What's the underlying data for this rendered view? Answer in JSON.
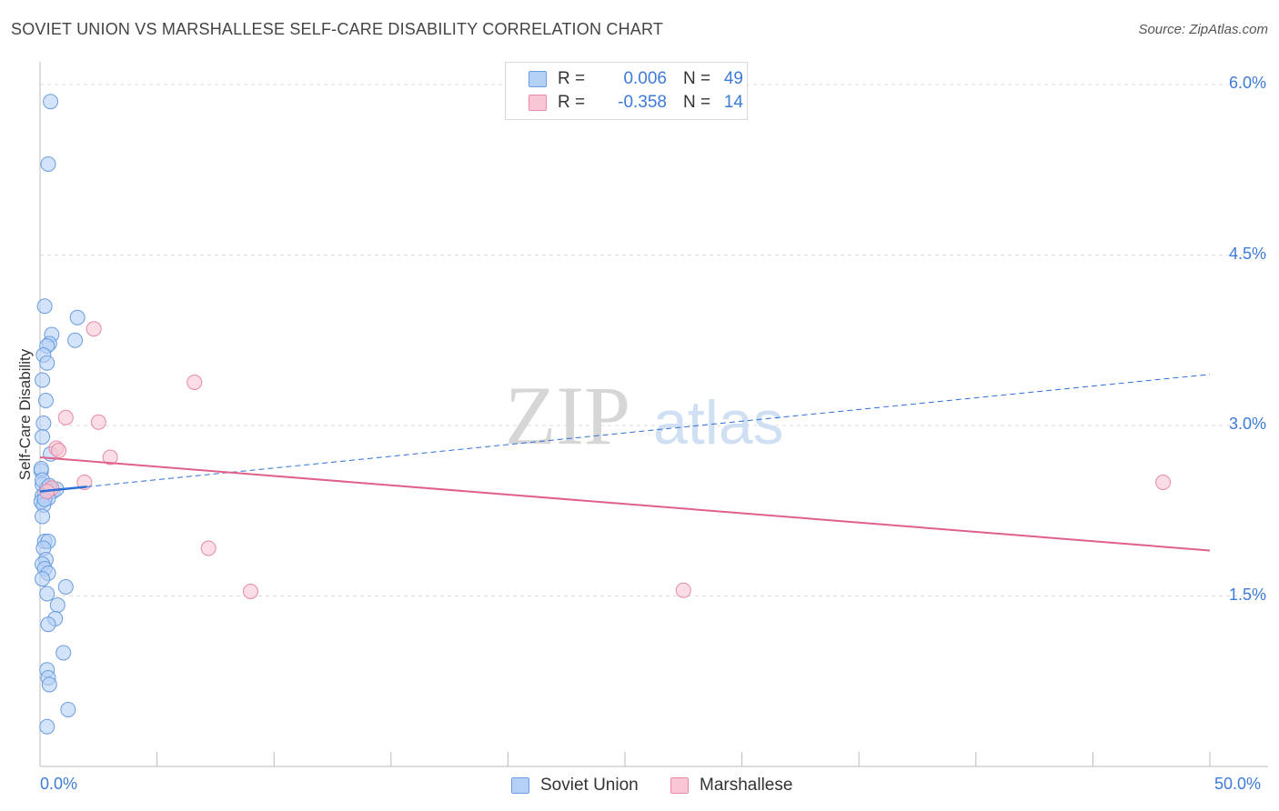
{
  "title": "SOVIET UNION VS MARSHALLESE SELF-CARE DISABILITY CORRELATION CHART",
  "source": "Source: ZipAtlas.com",
  "watermark": {
    "zip": "ZIP",
    "atlas": "atlas"
  },
  "colors": {
    "soviet_fill": "#b5d0f5",
    "soviet_stroke": "#6b9de0",
    "soviet_line": "#2e6fd6",
    "marsh_fill": "#f8c6d4",
    "marsh_stroke": "#e88aa7",
    "marsh_line": "#e0608c",
    "accent_text": "#3d7bd9",
    "grid": "#dcdcdc"
  },
  "legend": {
    "rows": [
      {
        "r_label": "R =",
        "r_value": "0.006",
        "n_label": "N =",
        "n_value": "49"
      },
      {
        "r_label": "R =",
        "r_value": "-0.358",
        "n_label": "N =",
        "n_value": "14"
      }
    ]
  },
  "chart_data": {
    "type": "scatter",
    "title": "SOVIET UNION VS MARSHALLESE SELF-CARE DISABILITY CORRELATION CHART",
    "xlabel": "",
    "ylabel": "Self-Care Disability",
    "xlim": [
      0,
      50
    ],
    "ylim": [
      0,
      6.2
    ],
    "x_tick_labels": [
      "0.0%",
      "50.0%"
    ],
    "y_ticks": [
      1.5,
      3.0,
      4.5,
      6.0
    ],
    "y_tick_labels": [
      "1.5%",
      "3.0%",
      "4.5%",
      "6.0%"
    ],
    "grid": "horizontal dashed",
    "legend_position": "top-center and bottom",
    "series": [
      {
        "name": "Soviet Union",
        "r": 0.006,
        "n": 49,
        "points": [
          [
            0.45,
            5.85
          ],
          [
            0.35,
            5.3
          ],
          [
            0.2,
            4.05
          ],
          [
            1.6,
            3.95
          ],
          [
            0.5,
            3.8
          ],
          [
            1.5,
            3.75
          ],
          [
            0.4,
            3.72
          ],
          [
            0.3,
            3.7
          ],
          [
            0.15,
            3.62
          ],
          [
            0.3,
            3.55
          ],
          [
            0.1,
            3.4
          ],
          [
            0.25,
            3.22
          ],
          [
            0.15,
            3.02
          ],
          [
            0.1,
            2.9
          ],
          [
            0.45,
            2.75
          ],
          [
            0.05,
            2.6
          ],
          [
            0.1,
            2.48
          ],
          [
            0.3,
            2.45
          ],
          [
            0.55,
            2.42
          ],
          [
            0.7,
            2.44
          ],
          [
            0.2,
            2.4
          ],
          [
            0.1,
            2.38
          ],
          [
            0.35,
            2.36
          ],
          [
            0.05,
            2.33
          ],
          [
            0.15,
            2.3
          ],
          [
            0.1,
            2.2
          ],
          [
            0.2,
            1.98
          ],
          [
            0.35,
            1.98
          ],
          [
            0.15,
            1.92
          ],
          [
            0.25,
            1.82
          ],
          [
            0.1,
            1.78
          ],
          [
            0.2,
            1.74
          ],
          [
            0.35,
            1.7
          ],
          [
            0.1,
            1.65
          ],
          [
            1.1,
            1.58
          ],
          [
            0.3,
            1.52
          ],
          [
            0.75,
            1.42
          ],
          [
            0.65,
            1.3
          ],
          [
            0.35,
            1.25
          ],
          [
            1.0,
            1.0
          ],
          [
            0.3,
            0.85
          ],
          [
            0.35,
            0.78
          ],
          [
            0.4,
            0.72
          ],
          [
            1.2,
            0.5
          ],
          [
            0.3,
            0.35
          ],
          [
            0.05,
            2.62
          ],
          [
            0.1,
            2.52
          ],
          [
            0.2,
            2.35
          ],
          [
            0.4,
            2.47
          ]
        ],
        "trend": {
          "x0": 0,
          "y0": 2.42,
          "x1": 50,
          "y1": 3.45,
          "solid_until_x": 2.0
        }
      },
      {
        "name": "Marshallese",
        "r": -0.358,
        "n": 14,
        "points": [
          [
            2.3,
            3.85
          ],
          [
            6.6,
            3.38
          ],
          [
            1.1,
            3.07
          ],
          [
            2.5,
            3.03
          ],
          [
            0.7,
            2.8
          ],
          [
            0.8,
            2.78
          ],
          [
            3.0,
            2.72
          ],
          [
            1.9,
            2.5
          ],
          [
            0.5,
            2.45
          ],
          [
            48.0,
            2.5
          ],
          [
            7.2,
            1.92
          ],
          [
            9.0,
            1.54
          ],
          [
            27.5,
            1.55
          ],
          [
            0.3,
            2.42
          ]
        ],
        "trend": {
          "x0": 0,
          "y0": 2.72,
          "x1": 50,
          "y1": 1.9
        }
      }
    ]
  }
}
